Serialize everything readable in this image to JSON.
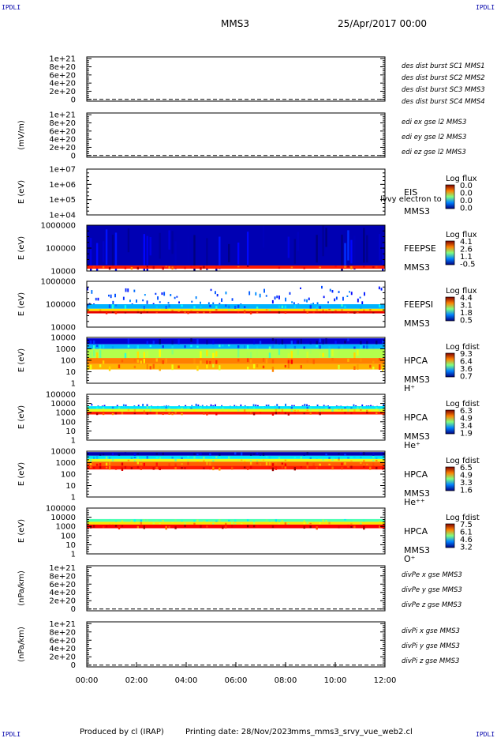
{
  "header": {
    "corner_label": "IPDLI",
    "mission": "MMS3",
    "datetime": "25/Apr/2017 00:00"
  },
  "footer": {
    "produced_by": "Produced by cl (IRAP)",
    "printing_date": "Printing date: 28/Nov/2023",
    "script_name": "mms_mms3_srvy_vue_web2.cl"
  },
  "chart_data": {
    "type": "heatmap",
    "x_ticks": [
      "00:00",
      "02:00",
      "04:00",
      "06:00",
      "08:00",
      "10:00",
      "12:00"
    ],
    "x_range_hours": [
      0,
      12
    ],
    "panels": [
      {
        "id": "des-dist",
        "kind": "line",
        "ylabel": "",
        "yticks": [
          "1e+21",
          "8e+20",
          "6e+20",
          "4e+20",
          "2e+20",
          "0"
        ],
        "zero_line": true,
        "legend": [
          {
            "text": "des dist burst SC1 MMS1",
            "color": "#0000cc"
          },
          {
            "text": "des dist burst SC2 MMS2",
            "color": "#cc00cc"
          },
          {
            "text": "des dist burst SC3 MMS3",
            "color": "#cc0000"
          },
          {
            "text": "des dist burst SC4 MMS4",
            "color": "#00bb00"
          }
        ]
      },
      {
        "id": "edi-e",
        "kind": "line",
        "ylabel": "(mV/m)",
        "yticks": [
          "1e+21",
          "8e+20",
          "6e+20",
          "4e+20",
          "2e+20",
          "0"
        ],
        "zero_line": true,
        "legend": [
          {
            "text": "edi ex gse l2 MMS3",
            "color": "#cc0000"
          },
          {
            "text": "edi ey gse l2 MMS3",
            "color": "#00bb00"
          },
          {
            "text": "edi ez gse l2 MMS3",
            "color": "#0000cc"
          }
        ]
      },
      {
        "id": "eis",
        "kind": "spectrogram",
        "ylabel": "E (eV)",
        "yticks": [
          "1e+07",
          "1e+06",
          "1e+05",
          "1e+04"
        ],
        "labels": [
          "EIS",
          "MMS3"
        ],
        "overlay_text": "lvvy electron to",
        "colorbar": {
          "title": "Log flux",
          "ticks": [
            "0.0",
            "0.0",
            "0.0",
            "0.0"
          ]
        },
        "bands": []
      },
      {
        "id": "feepse",
        "kind": "spectrogram",
        "ylabel": "E (eV)",
        "yticks": [
          "1000000",
          "100000",
          "10000"
        ],
        "labels": [
          "FEEPSE",
          "MMS3"
        ],
        "colorbar": {
          "title": "Log flux",
          "ticks": [
            "4.1",
            "2.6",
            "1.1",
            "-0.5"
          ]
        },
        "bands": [
          {
            "from": 0.0,
            "to": 0.88,
            "level": 0.05
          },
          {
            "from": 0.88,
            "to": 0.95,
            "level": 0.85
          }
        ]
      },
      {
        "id": "feepsi",
        "kind": "spectrogram",
        "ylabel": "E (eV)",
        "yticks": [
          "1000000",
          "100000",
          "10000"
        ],
        "labels": [
          "FEEPSI",
          "MMS3"
        ],
        "colorbar": {
          "title": "Log flux",
          "ticks": [
            "4.4",
            "3.1",
            "1.8",
            "0.5"
          ]
        },
        "bands": [
          {
            "from": 0.1,
            "to": 0.5,
            "level": 0.12,
            "sparse": true
          },
          {
            "from": 0.5,
            "to": 0.6,
            "level": 0.3
          },
          {
            "from": 0.6,
            "to": 0.65,
            "level": 0.65
          },
          {
            "from": 0.65,
            "to": 0.7,
            "level": 0.9
          }
        ]
      },
      {
        "id": "hpca-h",
        "kind": "spectrogram",
        "ylabel": "E (eV)",
        "yticks": [
          "10000",
          "1000",
          "100",
          "10",
          "1"
        ],
        "labels": [
          "HPCA",
          "MMS3",
          "H⁺"
        ],
        "colorbar": {
          "title": "Log fdist",
          "ticks": [
            "9.3",
            "6.4",
            "3.6",
            "0.7"
          ]
        },
        "bands": [
          {
            "from": 0.02,
            "to": 0.15,
            "level": 0.08
          },
          {
            "from": 0.15,
            "to": 0.25,
            "level": 0.3
          },
          {
            "from": 0.25,
            "to": 0.45,
            "level": 0.55
          },
          {
            "from": 0.45,
            "to": 0.58,
            "level": 0.75
          },
          {
            "from": 0.58,
            "to": 0.7,
            "level": 0.7
          }
        ]
      },
      {
        "id": "hpca-he",
        "kind": "spectrogram",
        "ylabel": "E (eV)",
        "yticks": [
          "100000",
          "10000",
          "1000",
          "100",
          "10",
          "1"
        ],
        "labels": [
          "HPCA",
          "MMS3",
          "He⁺"
        ],
        "colorbar": {
          "title": "Log fdist",
          "ticks": [
            "6.3",
            "4.9",
            "3.4",
            "1.9"
          ]
        },
        "bands": [
          {
            "from": 0.2,
            "to": 0.26,
            "level": 0.1,
            "sparse": true
          },
          {
            "from": 0.26,
            "to": 0.32,
            "level": 0.35
          },
          {
            "from": 0.32,
            "to": 0.38,
            "level": 0.6
          },
          {
            "from": 0.38,
            "to": 0.44,
            "level": 0.85
          }
        ]
      },
      {
        "id": "hpca-he2",
        "kind": "spectrogram",
        "ylabel": "E (eV)",
        "yticks": [
          "10000",
          "1000",
          "100",
          "10",
          "1"
        ],
        "labels": [
          "HPCA",
          "MMS3",
          "He⁺⁺"
        ],
        "colorbar": {
          "title": "Log fdist",
          "ticks": [
            "6.5",
            "4.9",
            "3.3",
            "1.6"
          ]
        },
        "bands": [
          {
            "from": 0.02,
            "to": 0.1,
            "level": 0.05
          },
          {
            "from": 0.1,
            "to": 0.17,
            "level": 0.35
          },
          {
            "from": 0.17,
            "to": 0.23,
            "level": 0.6
          },
          {
            "from": 0.23,
            "to": 0.32,
            "level": 0.78
          },
          {
            "from": 0.32,
            "to": 0.4,
            "level": 0.85
          }
        ]
      },
      {
        "id": "hpca-o",
        "kind": "spectrogram",
        "ylabel": "E (eV)",
        "yticks": [
          "100000",
          "10000",
          "1000",
          "100",
          "10",
          "1"
        ],
        "labels": [
          "HPCA",
          "MMS3",
          "O⁺"
        ],
        "colorbar": {
          "title": "Log fdist",
          "ticks": [
            "7.5",
            "6.1",
            "4.6",
            "3.2"
          ]
        },
        "bands": [
          {
            "from": 0.24,
            "to": 0.3,
            "level": 0.45
          },
          {
            "from": 0.3,
            "to": 0.36,
            "level": 0.65
          },
          {
            "from": 0.36,
            "to": 0.44,
            "level": 0.88
          }
        ]
      },
      {
        "id": "divpe",
        "kind": "line",
        "ylabel": "(nPa/km)",
        "yticks": [
          "1e+21",
          "8e+20",
          "6e+20",
          "4e+20",
          "2e+20",
          "0"
        ],
        "zero_line": true,
        "legend": [
          {
            "text": "divPe x gse MMS3",
            "color": "#cc0000"
          },
          {
            "text": "divPe y gse MMS3",
            "color": "#00bb00"
          },
          {
            "text": "divPe z gse MMS3",
            "color": "#0000cc"
          }
        ]
      },
      {
        "id": "divpi",
        "kind": "line",
        "ylabel": "(nPa/km)",
        "yticks": [
          "1e+21",
          "8e+20",
          "6e+20",
          "4e+20",
          "2e+20",
          "0"
        ],
        "zero_line": true,
        "legend": [
          {
            "text": "divPi x gse MMS3",
            "color": "#cc0000"
          },
          {
            "text": "divPi y gse MMS3",
            "color": "#00bb00"
          },
          {
            "text": "divPi z gse MMS3",
            "color": "#0000cc"
          }
        ]
      }
    ]
  }
}
